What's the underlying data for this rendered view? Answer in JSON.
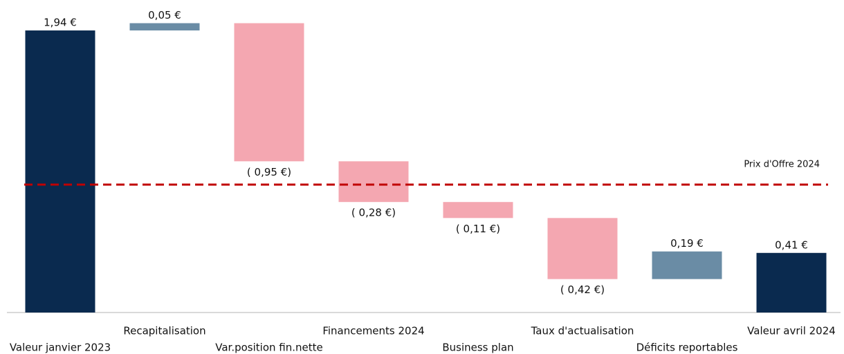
{
  "chart_data": {
    "type": "waterfall",
    "categories": [
      "Valeur janvier 2023",
      "Recapitalisation",
      "Var.position fin.nette",
      "Financements 2024",
      "Business plan",
      "Taux d'actualisation",
      "Déficits reportables",
      "Valeur avril 2024"
    ],
    "values": [
      1.94,
      0.05,
      -0.95,
      -0.28,
      -0.11,
      -0.42,
      0.19,
      0.41
    ],
    "value_labels": [
      "1,94 €",
      "0,05 €",
      "( 0,95 €)",
      "( 0,28 €)",
      "( 0,11 €)",
      "( 0,42 €)",
      "0,19 €",
      "0,41 €"
    ],
    "colors": [
      "#0a2a4f",
      "#6a8ca5",
      "#f4a7b1",
      "#f4a7b1",
      "#f4a7b1",
      "#f4a7b1",
      "#6a8ca5",
      "#0a2a4f"
    ],
    "ylim": [
      0,
      2.1
    ],
    "reference_line": {
      "value": 0.88,
      "label": "Prix d'Offre 2024",
      "color": "#c00000"
    }
  }
}
